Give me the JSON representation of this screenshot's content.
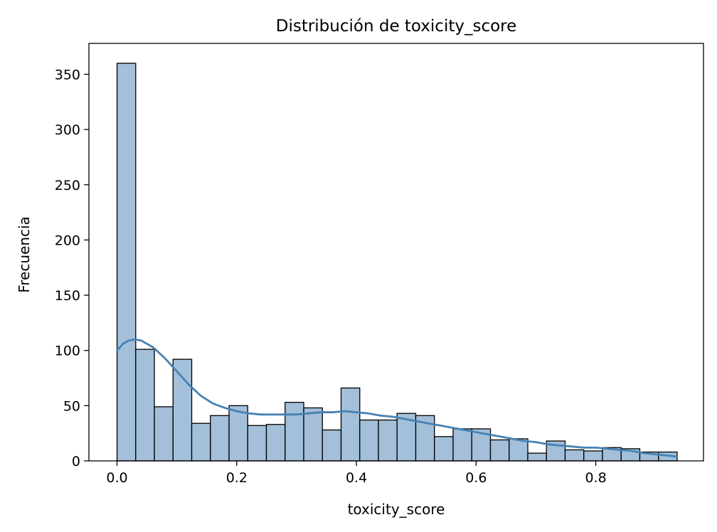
{
  "chart_data": {
    "type": "bar",
    "title": "Distribución de toxicity_score",
    "xlabel": "toxicity_score",
    "ylabel": "Frecuencia",
    "xlim": [
      -0.047,
      0.98
    ],
    "ylim": [
      0,
      378
    ],
    "xticks": [
      0.0,
      0.2,
      0.4,
      0.6,
      0.8
    ],
    "xtick_labels": [
      "0.0",
      "0.2",
      "0.4",
      "0.6",
      "0.8"
    ],
    "yticks": [
      0,
      50,
      100,
      150,
      200,
      250,
      300,
      350
    ],
    "ytick_labels": [
      "0",
      "50",
      "100",
      "150",
      "200",
      "250",
      "300",
      "350"
    ],
    "grid": false,
    "bins": {
      "start": 0.0,
      "width": 0.0312,
      "values": [
        360,
        101,
        49,
        92,
        34,
        41,
        50,
        32,
        33,
        53,
        48,
        28,
        66,
        37,
        37,
        43,
        41,
        22,
        29,
        29,
        19,
        20,
        7,
        18,
        10,
        9,
        12,
        11,
        8,
        8
      ]
    },
    "kde": {
      "x": [
        0.0,
        0.01,
        0.02,
        0.03,
        0.04,
        0.06,
        0.08,
        0.1,
        0.12,
        0.14,
        0.16,
        0.18,
        0.2,
        0.22,
        0.24,
        0.26,
        0.28,
        0.3,
        0.32,
        0.34,
        0.36,
        0.38,
        0.4,
        0.42,
        0.44,
        0.46,
        0.48,
        0.5,
        0.52,
        0.54,
        0.56,
        0.58,
        0.6,
        0.62,
        0.64,
        0.66,
        0.68,
        0.7,
        0.72,
        0.74,
        0.76,
        0.78,
        0.8,
        0.82,
        0.84,
        0.86,
        0.88,
        0.9,
        0.935
      ],
      "y": [
        100,
        106,
        109,
        110,
        109,
        103,
        93,
        81,
        69,
        59,
        52,
        48,
        45,
        43,
        42,
        42,
        42,
        42,
        43,
        44,
        44,
        45,
        44,
        43,
        41,
        40,
        38,
        36,
        34,
        32,
        30,
        28,
        26,
        24,
        22,
        20,
        18,
        17,
        15,
        14,
        13,
        12,
        12,
        11,
        10,
        9,
        7,
        6,
        4
      ]
    },
    "colors": {
      "bar_fill": "#a3bfd9",
      "bar_edge": "#000000",
      "kde_line": "#4682b4"
    }
  }
}
